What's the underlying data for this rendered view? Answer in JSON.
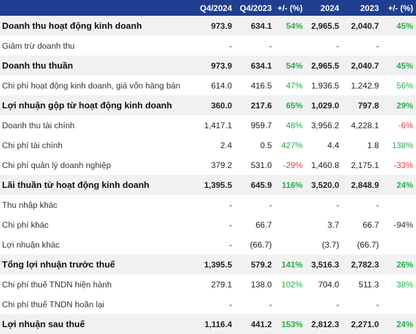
{
  "columns": [
    "",
    "Q4/2024",
    "Q4/2023",
    "+/- (%)",
    "2024",
    "2023",
    "+/- (%)"
  ],
  "colors": {
    "header_bg": "#1f3e8f",
    "positive": "#23b04a",
    "negative": "#e23b3b",
    "bold_row_bg": "#f1f1f1"
  },
  "rows": [
    {
      "label": "Doanh thu hoạt động kinh doanh",
      "bold": true,
      "q4_2024": "973.9",
      "q4_2023": "634.1",
      "q_chg": "54%",
      "q_chg_sign": "pos",
      "y2024": "2,965.5",
      "y2023": "2,040.7",
      "y_chg": "45%",
      "y_chg_sign": "pos"
    },
    {
      "label": "Giảm trừ doanh thu",
      "bold": false,
      "q4_2024": "-",
      "q4_2023": "-",
      "q_chg": "",
      "q_chg_sign": "neu",
      "y2024": "-",
      "y2023": "-",
      "y_chg": "",
      "y_chg_sign": "neu"
    },
    {
      "label": "Doanh thu thuần",
      "bold": true,
      "q4_2024": "973.9",
      "q4_2023": "634.1",
      "q_chg": "54%",
      "q_chg_sign": "pos",
      "y2024": "2,965.5",
      "y2023": "2,040.7",
      "y_chg": "45%",
      "y_chg_sign": "pos"
    },
    {
      "label": "Chi phí hoạt động kinh doanh, giá vốn hàng bán",
      "bold": false,
      "q4_2024": "614.0",
      "q4_2023": "416.5",
      "q_chg": "47%",
      "q_chg_sign": "pos",
      "y2024": "1,936.5",
      "y2023": "1,242.9",
      "y_chg": "56%",
      "y_chg_sign": "pos"
    },
    {
      "label": "Lợi nhuận gộp từ hoạt động kinh doanh",
      "bold": true,
      "q4_2024": "360.0",
      "q4_2023": "217.6",
      "q_chg": "65%",
      "q_chg_sign": "pos",
      "y2024": "1,029.0",
      "y2023": "797.8",
      "y_chg": "29%",
      "y_chg_sign": "pos"
    },
    {
      "label": "Doanh thu tài chính",
      "bold": false,
      "q4_2024": "1,417.1",
      "q4_2023": "959.7",
      "q_chg": "48%",
      "q_chg_sign": "pos",
      "y2024": "3,956.2",
      "y2023": "4,228.1",
      "y_chg": "-6%",
      "y_chg_sign": "neg"
    },
    {
      "label": "Chi phí tài chính",
      "bold": false,
      "q4_2024": "2.4",
      "q4_2023": "0.5",
      "q_chg": "427%",
      "q_chg_sign": "pos",
      "y2024": "4.4",
      "y2023": "1.8",
      "y_chg": "138%",
      "y_chg_sign": "pos"
    },
    {
      "label": "Chi phí quản lý doanh nghiệp",
      "bold": false,
      "q4_2024": "379.2",
      "q4_2023": "531.0",
      "q_chg": "-29%",
      "q_chg_sign": "neg",
      "y2024": "1,460.8",
      "y2023": "2,175.1",
      "y_chg": "-33%",
      "y_chg_sign": "neg"
    },
    {
      "label": "Lãi thuần từ hoạt động kinh doanh",
      "bold": true,
      "q4_2024": "1,395.5",
      "q4_2023": "645.9",
      "q_chg": "116%",
      "q_chg_sign": "pos",
      "y2024": "3,520.0",
      "y2023": "2,848.9",
      "y_chg": "24%",
      "y_chg_sign": "pos"
    },
    {
      "label": "Thu nhập khác",
      "bold": false,
      "q4_2024": "-",
      "q4_2023": "-",
      "q_chg": "",
      "q_chg_sign": "neu",
      "y2024": "-",
      "y2023": "-",
      "y_chg": "",
      "y_chg_sign": "neu"
    },
    {
      "label": "Chi phí khác",
      "bold": false,
      "q4_2024": "-",
      "q4_2023": "66.7",
      "q_chg": "",
      "q_chg_sign": "neu",
      "y2024": "3.7",
      "y2023": "66.7",
      "y_chg": "-94%",
      "y_chg_sign": "neu"
    },
    {
      "label": "Lợi nhuận khác",
      "bold": false,
      "q4_2024": "-",
      "q4_2023": "(66.7)",
      "q_chg": "",
      "q_chg_sign": "neu",
      "y2024": "(3.7)",
      "y2023": "(66.7)",
      "y_chg": "",
      "y_chg_sign": "neu"
    },
    {
      "label": "Tổng lợi nhuận trước thuế",
      "bold": true,
      "q4_2024": "1,395.5",
      "q4_2023": "579.2",
      "q_chg": "141%",
      "q_chg_sign": "pos",
      "y2024": "3,516.3",
      "y2023": "2,782.3",
      "y_chg": "26%",
      "y_chg_sign": "pos"
    },
    {
      "label": "Chi phí thuế TNDN hiện hành",
      "bold": false,
      "q4_2024": "279.1",
      "q4_2023": "138.0",
      "q_chg": "102%",
      "q_chg_sign": "pos",
      "y2024": "704.0",
      "y2023": "511.3",
      "y_chg": "38%",
      "y_chg_sign": "pos"
    },
    {
      "label": "Chi phí thuế TNDN hoãn lại",
      "bold": false,
      "q4_2024": "-",
      "q4_2023": "-",
      "q_chg": "",
      "q_chg_sign": "neu",
      "y2024": "-",
      "y2023": "-",
      "y_chg": "",
      "y_chg_sign": "neu"
    },
    {
      "label": "Lợi nhuận sau thuế",
      "bold": true,
      "q4_2024": "1,116.4",
      "q4_2023": "441.2",
      "q_chg": "153%",
      "q_chg_sign": "pos",
      "y2024": "2,812.3",
      "y2023": "2,271.0",
      "y_chg": "24%",
      "y_chg_sign": "pos"
    }
  ]
}
